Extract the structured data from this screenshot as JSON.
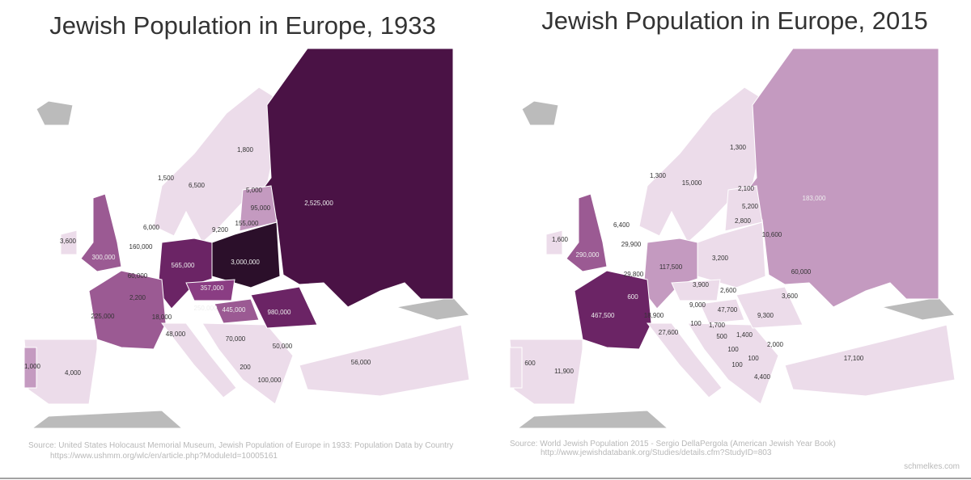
{
  "maps": [
    {
      "title": "Jewish Population in Europe, 1933",
      "labels": [
        "1,800",
        "1,500",
        "6,500",
        "5,000",
        "95,000",
        "2,525,000",
        "155,000",
        "6,000",
        "9,200",
        "3,600",
        "160,000",
        "300,000",
        "565,000",
        "3,000,000",
        "60,000",
        "357,000",
        "2,200",
        "250,000",
        "445,000",
        "980,000",
        "225,000",
        "18,000",
        "48,000",
        "70,000",
        "50,000",
        "56,000",
        "1,000",
        "4,000",
        "200",
        "100,000"
      ],
      "source": [
        "Source: United States Holocaust Memorial Museum, Jewish Population of Europe in 1933: Population Data by Country",
        "https://www.ushmm.org/wlc/en/article.php?ModuleId=10005161"
      ]
    },
    {
      "title": "Jewish Population in Europe, 2015",
      "labels": [
        "1,300",
        "1,300",
        "15,000",
        "2,100",
        "183,000",
        "5,200",
        "6,400",
        "2,800",
        "10,600",
        "1,600",
        "29,900",
        "290,000",
        "3,200",
        "117,500",
        "60,000",
        "29,800",
        "3,900",
        "2,600",
        "600",
        "3,600",
        "9,000",
        "47,700",
        "467,500",
        "18,900",
        "9,300",
        "100",
        "1,700",
        "27,600",
        "500",
        "1,400",
        "2,000",
        "100",
        "100",
        "100",
        "600",
        "11,900",
        "4,400",
        "17,100"
      ],
      "source": [
        "Source: World Jewish Population 2015 - Sergio DellaPergola (American Jewish Year Book)",
        "http://www.jewishdatabank.org/Studies/details.cfm?StudyID=803"
      ]
    }
  ],
  "credit": "schmelkes.com"
}
